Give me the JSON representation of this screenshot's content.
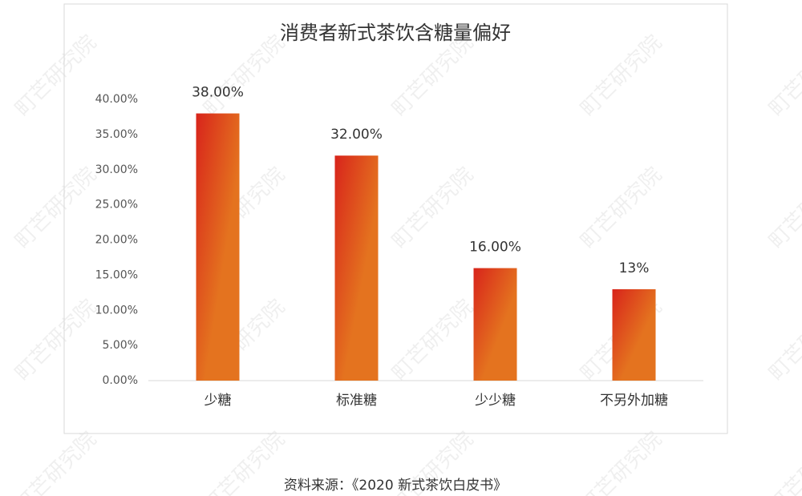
{
  "chart_data": {
    "type": "bar",
    "title": "消费者新式茶饮含糖量偏好",
    "categories": [
      "少糖",
      "标准糖",
      "少少糖",
      "不另外加糖"
    ],
    "values": [
      38,
      32,
      16,
      13
    ],
    "value_labels": [
      "38.00%",
      "32.00%",
      "16.00%",
      "13%"
    ],
    "colors": [
      "#d8241b",
      "#e4731f"
    ],
    "ylim": [
      0,
      40
    ],
    "yticks": [
      {
        "value": 0,
        "label": "0.00%"
      },
      {
        "value": 5,
        "label": "5.00%"
      },
      {
        "value": 10,
        "label": "10.00%"
      },
      {
        "value": 15,
        "label": "15.00%"
      },
      {
        "value": 20,
        "label": "20.00%"
      },
      {
        "value": 25,
        "label": "25.00%"
      },
      {
        "value": 30,
        "label": "30.00%"
      },
      {
        "value": 35,
        "label": "35.00%"
      },
      {
        "value": 40,
        "label": "40.00%"
      }
    ],
    "grid": false,
    "source": "资料来源：《2020 新式茶饮白皮书》",
    "watermark": "町芒研究院"
  }
}
